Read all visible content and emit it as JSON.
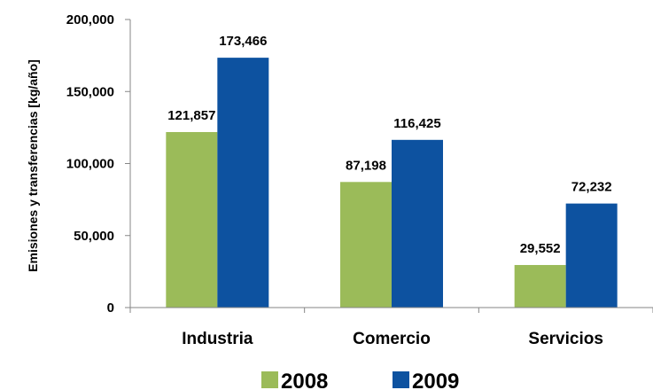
{
  "chart_data": {
    "type": "bar",
    "categories": [
      "Industria",
      "Comercio",
      "Servicios"
    ],
    "series": [
      {
        "name": "2008",
        "values": [
          121857,
          87198,
          29552
        ],
        "labels": [
          "121,857",
          "87,198",
          "29,552"
        ],
        "color": "#9BBB59"
      },
      {
        "name": "2009",
        "values": [
          173466,
          116425,
          72232
        ],
        "labels": [
          "173,466",
          "116,425",
          "72,232"
        ],
        "color": "#0D52A0"
      }
    ],
    "title": "",
    "xlabel": "",
    "ylabel": "Emisiones y transferencias [kg/año]",
    "ylim": [
      0,
      200000
    ],
    "yticks": [
      0,
      50000,
      100000,
      150000,
      200000
    ],
    "ytick_labels": [
      "0",
      "50,000",
      "100,000",
      "150,000",
      "200,000"
    ],
    "grid": false,
    "legend_position": "bottom"
  }
}
